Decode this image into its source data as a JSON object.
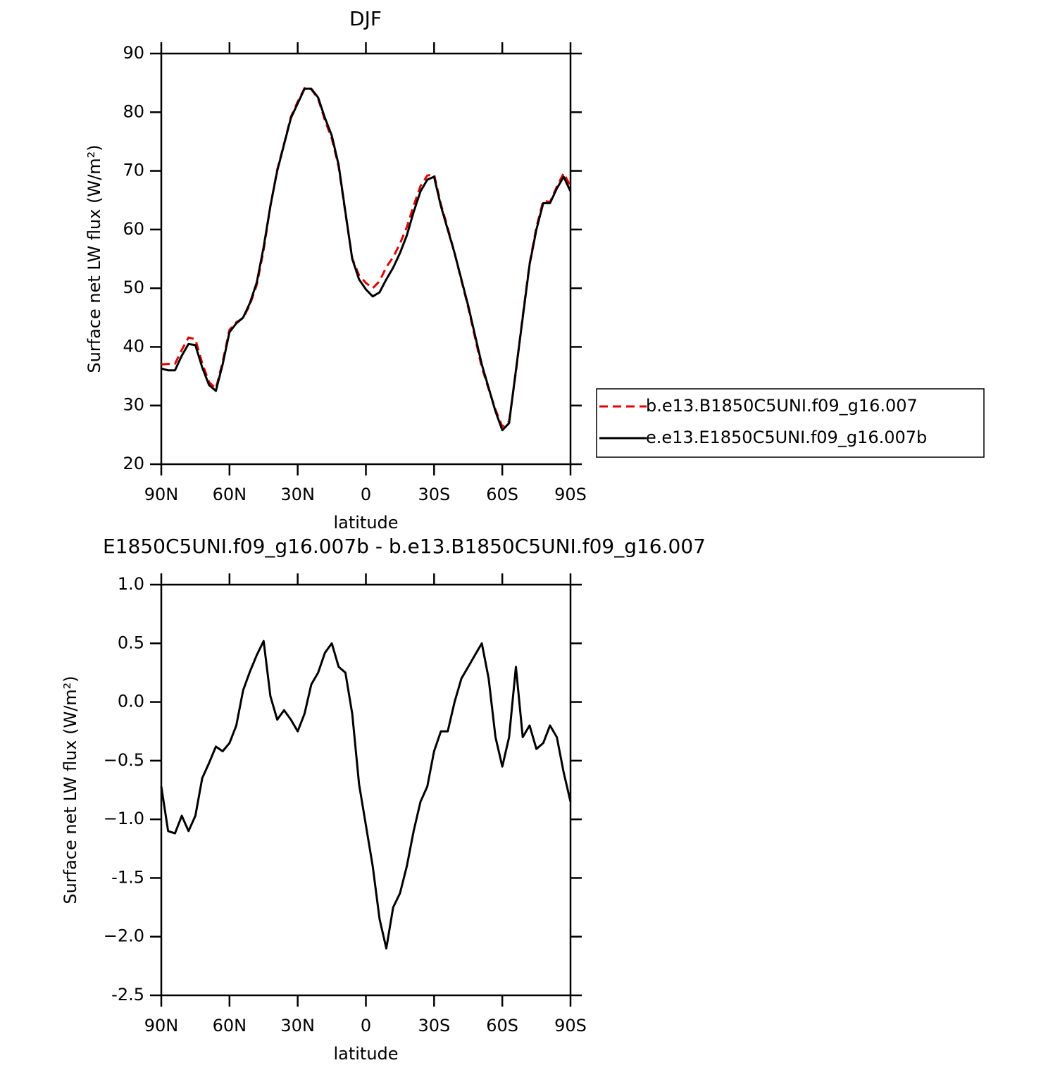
{
  "chart_data": [
    {
      "type": "line",
      "title": "DJF",
      "xlabel": "latitude",
      "ylabel": "Surface net LW flux (W/m²)",
      "x": [
        90,
        87,
        84,
        81,
        78,
        75,
        72,
        69,
        66,
        63,
        60,
        57,
        54,
        51,
        48,
        45,
        42,
        39,
        36,
        33,
        30,
        27,
        24,
        21,
        18,
        15,
        12,
        9,
        6,
        3,
        0,
        -3,
        -6,
        -9,
        -12,
        -15,
        -18,
        -21,
        -24,
        -27,
        -30,
        -33,
        -36,
        -39,
        -42,
        -45,
        -48,
        -51,
        -54,
        -57,
        -60,
        -63,
        -66,
        -69,
        -72,
        -75,
        -78,
        -81,
        -84,
        -87,
        -90
      ],
      "xlim": [
        90,
        -90
      ],
      "xticks": [
        {
          "value": 90,
          "label": "90N"
        },
        {
          "value": 60,
          "label": "60N"
        },
        {
          "value": 30,
          "label": "30N"
        },
        0,
        {
          "value": -30,
          "label": "30S"
        },
        {
          "value": -60,
          "label": "60S"
        },
        {
          "value": -90,
          "label": "90S"
        }
      ],
      "ylim": [
        20,
        90
      ],
      "yticks": [
        20,
        30,
        40,
        50,
        60,
        70,
        80,
        90
      ],
      "series": [
        {
          "name": "b.e13.B1850C5UNI.f09_g16.007",
          "color": "#e00000",
          "linestyle": "dashed",
          "values": [
            37.0,
            37.1,
            37.1,
            39.5,
            41.6,
            41.3,
            37.2,
            34.0,
            32.9,
            37.4,
            42.9,
            44.2,
            44.9,
            47.2,
            50.6,
            56.5,
            64.0,
            70.2,
            74.6,
            79.2,
            81.8,
            84.1,
            83.9,
            82.3,
            78.6,
            75.5,
            70.7,
            62.8,
            55.1,
            52.2,
            50.9,
            50.0,
            51.2,
            53.6,
            55.3,
            57.6,
            60.4,
            64.1,
            67.4,
            69.2,
            69.4,
            64.3,
            60.3,
            56.0,
            51.3,
            46.7,
            41.6,
            36.5,
            32.8,
            29.3,
            26.4,
            27.3,
            35.7,
            45.3,
            54.2,
            60.4,
            64.9,
            64.7,
            67.3,
            69.6,
            67.4
          ]
        },
        {
          "name": "e.e13.E1850C5UNI.f09_g16.007b",
          "color": "#000000",
          "linestyle": "solid",
          "values": [
            36.3,
            36.0,
            36.0,
            38.5,
            40.5,
            40.3,
            36.5,
            33.5,
            32.5,
            37.0,
            42.5,
            44.0,
            45.0,
            47.5,
            51.0,
            57.0,
            64.0,
            70.0,
            74.5,
            79.0,
            81.5,
            84.0,
            84.0,
            82.5,
            79.0,
            76.0,
            71.0,
            63.0,
            55.0,
            51.5,
            49.8,
            48.6,
            49.3,
            51.5,
            53.5,
            56.0,
            59.0,
            63.0,
            66.5,
            68.5,
            69.0,
            64.0,
            60.0,
            56.0,
            51.5,
            47.0,
            42.0,
            37.0,
            33.0,
            29.0,
            25.8,
            27.0,
            36.0,
            45.0,
            54.0,
            60.0,
            64.5,
            64.5,
            67.0,
            69.0,
            66.5
          ]
        }
      ]
    },
    {
      "type": "line",
      "title": "E1850C5UNI.f09_g16.007b - b.e13.B1850C5UNI.f09_g16.007",
      "xlabel": "latitude",
      "ylabel": "Surface net LW flux (W/m²)",
      "x": [
        90,
        87,
        84,
        81,
        78,
        75,
        72,
        69,
        66,
        63,
        60,
        57,
        54,
        51,
        48,
        45,
        42,
        39,
        36,
        33,
        30,
        27,
        24,
        21,
        18,
        15,
        12,
        9,
        6,
        3,
        0,
        -3,
        -6,
        -9,
        -12,
        -15,
        -18,
        -21,
        -24,
        -27,
        -30,
        -33,
        -36,
        -39,
        -42,
        -45,
        -48,
        -51,
        -54,
        -57,
        -60,
        -63,
        -66,
        -69,
        -72,
        -75,
        -78,
        -81,
        -84,
        -87,
        -90
      ],
      "xlim": [
        90,
        -90
      ],
      "xticks": [
        {
          "value": 90,
          "label": "90N"
        },
        {
          "value": 60,
          "label": "60N"
        },
        {
          "value": 30,
          "label": "30N"
        },
        0,
        {
          "value": -30,
          "label": "30S"
        },
        {
          "value": -60,
          "label": "60S"
        },
        {
          "value": -90,
          "label": "90S"
        }
      ],
      "ylim": [
        -2.5,
        1
      ],
      "yticks": [
        -2.5,
        {
          "value": -2,
          "label": "−2.0"
        },
        -1.5,
        {
          "value": -1,
          "label": "−1.0"
        },
        {
          "value": -0.5,
          "label": "−0.5"
        },
        {
          "value": 0,
          "label": "0.0"
        },
        0.5,
        {
          "value": 1,
          "label": "1.0"
        }
      ],
      "color": "#000000",
      "linestyle": "solid",
      "values": [
        -0.72,
        -1.1,
        -1.12,
        -0.97,
        -1.1,
        -0.97,
        -0.65,
        -0.52,
        -0.38,
        -0.42,
        -0.35,
        -0.2,
        0.1,
        0.26,
        0.4,
        0.52,
        0.05,
        -0.15,
        -0.07,
        -0.15,
        -0.25,
        -0.1,
        0.15,
        0.25,
        0.42,
        0.5,
        0.3,
        0.25,
        -0.1,
        -0.7,
        -1.05,
        -1.4,
        -1.85,
        -2.1,
        -1.75,
        -1.63,
        -1.4,
        -1.1,
        -0.85,
        -0.72,
        -0.42,
        -0.25,
        -0.25,
        0.0,
        0.2,
        0.3,
        0.4,
        0.5,
        0.2,
        -0.3,
        -0.55,
        -0.3,
        0.3,
        -0.3,
        -0.2,
        -0.4,
        -0.35,
        -0.2,
        -0.3,
        -0.6,
        -0.85
      ]
    }
  ]
}
